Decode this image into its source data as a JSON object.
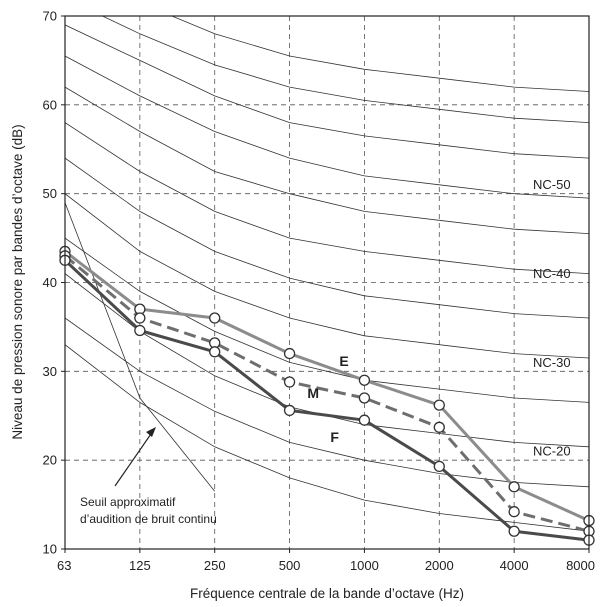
{
  "chart_data": {
    "type": "line",
    "title": "",
    "xlabel": "Fréquence centrale de la bande d’octave (Hz)",
    "ylabel": "Niveau de pression sonore par bandes d’octave (dB)",
    "x_categories": [
      "63",
      "125",
      "250",
      "500",
      "1000",
      "2000",
      "4000",
      "8000"
    ],
    "ylim": [
      10,
      70
    ],
    "y_ticks": [
      10,
      20,
      30,
      40,
      50,
      60,
      70
    ],
    "grid": true,
    "series": [
      {
        "name": "E",
        "color": "#8c8c8c",
        "dash": false,
        "values": [
          43.5,
          37,
          36,
          32,
          29,
          26.2,
          17,
          13.2
        ]
      },
      {
        "name": "M",
        "color": "#6e6e6e",
        "dash": true,
        "values": [
          43,
          36,
          33.2,
          28.8,
          27,
          23.7,
          14.2,
          12
        ]
      },
      {
        "name": "F",
        "color": "#4a4a4a",
        "dash": false,
        "values": [
          42.5,
          34.6,
          32.2,
          25.6,
          24.5,
          19.3,
          12,
          11
        ]
      }
    ],
    "nc_curves": {
      "labels": [
        {
          "text": "NC-50",
          "value": 50
        },
        {
          "text": "NC-40",
          "value": 40
        },
        {
          "text": "NC-30",
          "value": 30
        },
        {
          "text": "NC-20",
          "value": 20
        }
      ],
      "curves": [
        [
          33,
          26.5,
          21.5,
          18,
          15.5,
          14,
          13,
          12
        ],
        [
          36,
          30,
          25.5,
          22,
          20,
          18.5,
          17.5,
          17
        ],
        [
          41,
          34.5,
          29.5,
          26,
          24,
          23,
          22,
          21.5
        ],
        [
          45,
          39,
          34.5,
          31,
          29,
          28,
          27,
          26.5
        ],
        [
          50,
          43.5,
          39,
          36,
          34,
          33,
          32,
          31.5
        ],
        [
          54,
          48,
          43.5,
          40.5,
          38.5,
          37.5,
          36.5,
          36
        ],
        [
          58,
          52.5,
          48,
          45,
          43.5,
          42.5,
          41.5,
          41
        ],
        [
          62,
          57,
          52.5,
          50,
          48,
          47,
          46,
          45.5
        ],
        [
          65.5,
          61,
          57,
          54,
          52,
          51,
          50,
          49.5
        ],
        [
          69,
          65,
          61,
          58,
          56.5,
          55.5,
          54.5,
          54
        ],
        [
          72,
          68,
          64.5,
          62,
          60.5,
          59.5,
          58.5,
          58
        ],
        [
          75,
          71.5,
          68,
          65.5,
          64,
          63,
          62,
          61.5
        ]
      ]
    },
    "threshold": {
      "label_lines": [
        "Seuil approximatif",
        "d’audition de bruit continu"
      ],
      "values": [
        49,
        27,
        16.5
      ]
    }
  }
}
